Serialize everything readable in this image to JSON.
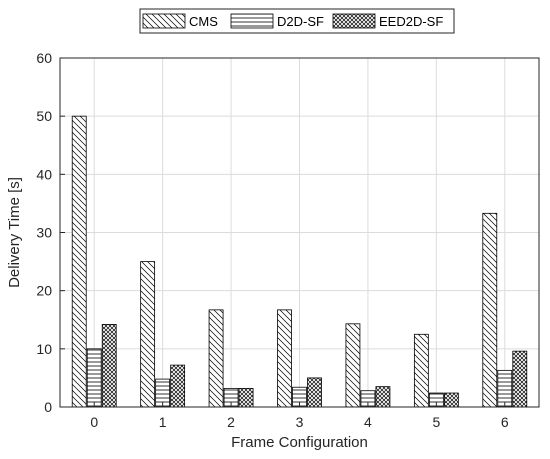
{
  "chart_data": {
    "type": "bar",
    "categories": [
      "0",
      "1",
      "2",
      "3",
      "4",
      "5",
      "6"
    ],
    "series": [
      {
        "name": "CMS",
        "pattern": "diagonal",
        "values": [
          50.0,
          25.0,
          16.7,
          16.7,
          14.3,
          12.5,
          33.3
        ]
      },
      {
        "name": "D2D-SF",
        "pattern": "horizontal",
        "values": [
          10.0,
          4.8,
          3.2,
          3.4,
          2.8,
          2.4,
          6.3
        ]
      },
      {
        "name": "EED2D-SF",
        "pattern": "crosshatch",
        "values": [
          14.2,
          7.2,
          3.2,
          5.0,
          3.5,
          2.4,
          9.6
        ]
      }
    ],
    "xlabel": "Frame Configuration",
    "ylabel": "Delivery Time [s]",
    "ylim": [
      0,
      60
    ],
    "yticks": [
      "0",
      "10",
      "20",
      "30",
      "40",
      "50",
      "60"
    ],
    "grid": true,
    "legend_position": "top",
    "legend_orientation": "horizontal",
    "colors": {
      "bar_stroke": "#000000",
      "grid": "#dcdcdc",
      "axis": "#262626"
    }
  }
}
